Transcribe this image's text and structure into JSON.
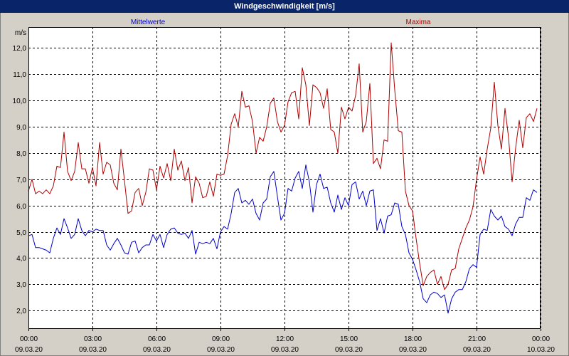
{
  "colors": {
    "title_bar": "#0a246a",
    "title_text": "#ffffff",
    "background": "#d4d0c8",
    "plot_background": "#ffffff",
    "grid": "#000000"
  },
  "chart_data": {
    "type": "line",
    "title": "Windgeschwindigkeit [m/s]",
    "ylabel": "m/s",
    "ylim": [
      1.3,
      12.8
    ],
    "xlim": [
      "09.03.20 00:00",
      "10.03.20 00:00"
    ],
    "grid": true,
    "legend": "top",
    "yticks": [
      {
        "value": 2,
        "label": "2,0"
      },
      {
        "value": 3,
        "label": "3,0"
      },
      {
        "value": 4,
        "label": "4,0"
      },
      {
        "value": 5,
        "label": "5,0"
      },
      {
        "value": 6,
        "label": "6,0"
      },
      {
        "value": 7,
        "label": "7,0"
      },
      {
        "value": 8,
        "label": "8,0"
      },
      {
        "value": 9,
        "label": "9,0"
      },
      {
        "value": 10,
        "label": "10,0"
      },
      {
        "value": 11,
        "label": "11,0"
      },
      {
        "value": 12,
        "label": "12,0"
      }
    ],
    "xticks": [
      {
        "time": "00:00",
        "date": "09.03.20"
      },
      {
        "time": "03:00",
        "date": "09.03.20"
      },
      {
        "time": "06:00",
        "date": "09.03.20"
      },
      {
        "time": "09:00",
        "date": "09.03.20"
      },
      {
        "time": "12:00",
        "date": "09.03.20"
      },
      {
        "time": "15:00",
        "date": "09.03.20"
      },
      {
        "time": "18:00",
        "date": "09.03.20"
      },
      {
        "time": "21:00",
        "date": "09.03.20"
      },
      {
        "time": "00:00",
        "date": "10.03.20"
      }
    ],
    "x": [
      "09.03.20 00:00",
      "09.03.20 00:10",
      "09.03.20 00:20",
      "09.03.20 00:30",
      "09.03.20 00:40",
      "09.03.20 00:50",
      "09.03.20 01:00",
      "09.03.20 01:10",
      "09.03.20 01:20",
      "09.03.20 01:30",
      "09.03.20 01:40",
      "09.03.20 01:50",
      "09.03.20 02:00",
      "09.03.20 02:10",
      "09.03.20 02:20",
      "09.03.20 02:30",
      "09.03.20 02:40",
      "09.03.20 02:50",
      "09.03.20 03:00",
      "09.03.20 03:10",
      "09.03.20 03:20",
      "09.03.20 03:30",
      "09.03.20 03:40",
      "09.03.20 03:50",
      "09.03.20 04:00",
      "09.03.20 04:10",
      "09.03.20 04:20",
      "09.03.20 04:30",
      "09.03.20 04:40",
      "09.03.20 04:50",
      "09.03.20 05:00",
      "09.03.20 05:10",
      "09.03.20 05:20",
      "09.03.20 05:30",
      "09.03.20 05:40",
      "09.03.20 05:50",
      "09.03.20 06:00",
      "09.03.20 06:10",
      "09.03.20 06:20",
      "09.03.20 06:30",
      "09.03.20 06:40",
      "09.03.20 06:50",
      "09.03.20 07:00",
      "09.03.20 07:10",
      "09.03.20 07:20",
      "09.03.20 07:30",
      "09.03.20 07:40",
      "09.03.20 07:50",
      "09.03.20 08:00",
      "09.03.20 08:10",
      "09.03.20 08:20",
      "09.03.20 08:30",
      "09.03.20 08:40",
      "09.03.20 08:50",
      "09.03.20 09:00",
      "09.03.20 09:10",
      "09.03.20 09:20",
      "09.03.20 09:30",
      "09.03.20 09:40",
      "09.03.20 09:50",
      "09.03.20 10:00",
      "09.03.20 10:10",
      "09.03.20 10:20",
      "09.03.20 10:30",
      "09.03.20 10:40",
      "09.03.20 10:50",
      "09.03.20 11:00",
      "09.03.20 11:10",
      "09.03.20 11:20",
      "09.03.20 11:30",
      "09.03.20 11:40",
      "09.03.20 11:50",
      "09.03.20 12:00",
      "09.03.20 12:10",
      "09.03.20 12:20",
      "09.03.20 12:30",
      "09.03.20 12:40",
      "09.03.20 12:50",
      "09.03.20 13:00",
      "09.03.20 13:10",
      "09.03.20 13:20",
      "09.03.20 13:30",
      "09.03.20 13:40",
      "09.03.20 13:50",
      "09.03.20 14:00",
      "09.03.20 14:10",
      "09.03.20 14:20",
      "09.03.20 14:30",
      "09.03.20 14:40",
      "09.03.20 14:50",
      "09.03.20 15:00",
      "09.03.20 15:10",
      "09.03.20 15:20",
      "09.03.20 15:30",
      "09.03.20 15:40",
      "09.03.20 15:50",
      "09.03.20 16:00",
      "09.03.20 16:10",
      "09.03.20 16:20",
      "09.03.20 16:30",
      "09.03.20 16:40",
      "09.03.20 16:50",
      "09.03.20 17:00",
      "09.03.20 17:10",
      "09.03.20 17:20",
      "09.03.20 17:30",
      "09.03.20 17:40",
      "09.03.20 17:50",
      "09.03.20 18:00",
      "09.03.20 18:10",
      "09.03.20 18:20",
      "09.03.20 18:30",
      "09.03.20 18:40",
      "09.03.20 18:50",
      "09.03.20 19:00",
      "09.03.20 19:10",
      "09.03.20 19:20",
      "09.03.20 19:30",
      "09.03.20 19:40",
      "09.03.20 19:50",
      "09.03.20 20:00",
      "09.03.20 20:10",
      "09.03.20 20:20",
      "09.03.20 20:30",
      "09.03.20 20:40",
      "09.03.20 20:50",
      "09.03.20 21:00",
      "09.03.20 21:10",
      "09.03.20 21:20",
      "09.03.20 21:30",
      "09.03.20 21:40",
      "09.03.20 21:50",
      "09.03.20 22:00",
      "09.03.20 22:10",
      "09.03.20 22:20",
      "09.03.20 22:30",
      "09.03.20 22:40",
      "09.03.20 22:50",
      "09.03.20 23:00",
      "09.03.20 23:10",
      "09.03.20 23:20",
      "09.03.20 23:30",
      "09.03.20 23:40",
      "09.03.20 23:50"
    ],
    "series": [
      {
        "name": "Mittelwerte",
        "color": "#0000cc",
        "values": [
          4.85,
          4.9,
          4.4,
          4.4,
          4.35,
          4.3,
          4.2,
          4.75,
          5.15,
          4.9,
          5.5,
          5.15,
          4.75,
          4.9,
          5.5,
          5.05,
          4.85,
          5.05,
          5.0,
          5.1,
          5.05,
          5.05,
          4.5,
          4.3,
          4.55,
          4.75,
          4.5,
          4.2,
          4.15,
          4.6,
          4.65,
          4.2,
          4.4,
          4.5,
          4.5,
          4.9,
          4.65,
          4.9,
          4.4,
          4.9,
          5.1,
          5.15,
          4.95,
          4.9,
          4.95,
          4.75,
          5.05,
          4.15,
          4.6,
          4.55,
          4.6,
          4.55,
          4.75,
          4.35,
          5.0,
          5.2,
          5.1,
          5.7,
          6.5,
          6.65,
          6.1,
          6.2,
          6.05,
          6.25,
          5.7,
          5.45,
          6.1,
          6.25,
          7.1,
          7.3,
          6.35,
          5.45,
          5.7,
          6.65,
          6.55,
          7.05,
          7.3,
          6.65,
          7.55,
          6.9,
          5.75,
          6.8,
          7.2,
          6.65,
          6.7,
          6.1,
          5.75,
          6.4,
          5.85,
          6.3,
          6.0,
          6.8,
          6.9,
          6.25,
          6.55,
          6.0,
          6.55,
          6.6,
          5.05,
          5.5,
          4.95,
          5.6,
          5.65,
          6.1,
          6.05,
          5.2,
          4.9,
          4.2,
          3.95,
          3.55,
          3.1,
          2.45,
          2.3,
          2.6,
          2.7,
          2.65,
          2.5,
          2.6,
          1.9,
          2.45,
          2.7,
          2.8,
          2.8,
          3.1,
          3.6,
          3.75,
          3.65,
          4.9,
          5.1,
          5.05,
          5.85,
          5.6,
          5.45,
          5.6,
          5.2,
          5.1,
          4.85,
          5.3,
          5.55,
          5.55,
          6.3,
          6.2,
          6.6,
          6.5
        ]
      },
      {
        "name": "Maxima",
        "color": "#b00000",
        "values": [
          6.55,
          7.0,
          6.45,
          6.55,
          6.45,
          6.6,
          6.45,
          6.75,
          7.5,
          7.45,
          8.8,
          7.3,
          6.95,
          7.3,
          8.4,
          7.4,
          7.4,
          6.85,
          7.45,
          6.75,
          8.4,
          7.2,
          7.65,
          7.55,
          6.85,
          6.6,
          8.15,
          6.95,
          5.7,
          5.8,
          6.5,
          6.65,
          6.0,
          6.5,
          7.4,
          7.35,
          6.6,
          7.5,
          7.05,
          7.6,
          6.95,
          8.15,
          7.35,
          7.7,
          6.95,
          7.45,
          6.1,
          7.1,
          6.85,
          6.3,
          6.35,
          6.9,
          6.35,
          7.2,
          7.15,
          7.2,
          7.9,
          9.1,
          9.5,
          9.0,
          10.35,
          9.75,
          9.8,
          9.2,
          8.0,
          8.6,
          8.45,
          9.0,
          9.9,
          10.1,
          9.2,
          8.8,
          9.05,
          9.95,
          10.3,
          10.35,
          9.3,
          11.25,
          10.6,
          9.05,
          10.6,
          10.5,
          10.3,
          9.7,
          10.45,
          8.9,
          8.8,
          8.0,
          9.75,
          9.3,
          9.75,
          9.6,
          10.2,
          11.4,
          8.8,
          9.2,
          10.65,
          7.6,
          7.8,
          7.4,
          8.5,
          8.45,
          12.2,
          10.4,
          8.85,
          8.8,
          6.55,
          6.0,
          5.8,
          4.75,
          3.8,
          2.95,
          3.3,
          3.45,
          3.55,
          3.0,
          3.3,
          2.8,
          3.0,
          3.55,
          3.6,
          4.35,
          4.75,
          5.15,
          5.45,
          5.95,
          7.0,
          7.85,
          7.2,
          8.15,
          8.95,
          10.7,
          9.05,
          8.15,
          9.7,
          8.6,
          6.9,
          8.2,
          9.25,
          8.2,
          9.35,
          9.5,
          9.2,
          9.7
        ]
      }
    ]
  }
}
